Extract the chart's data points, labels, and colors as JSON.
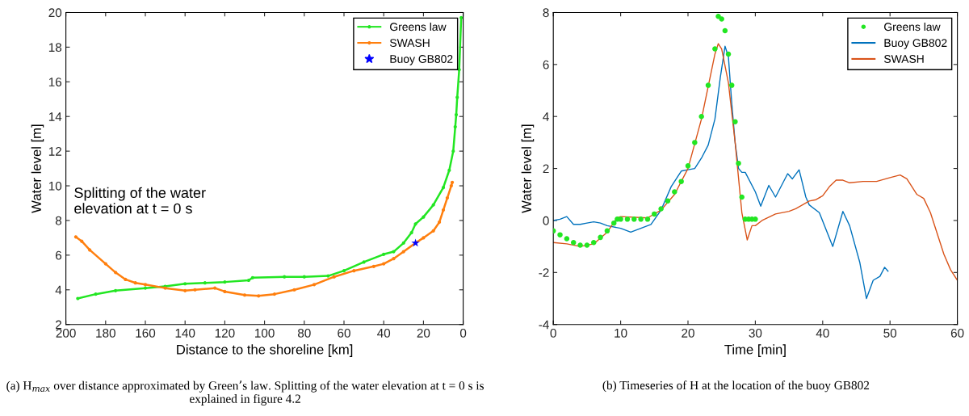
{
  "chart_data": [
    {
      "type": "line",
      "xlabel": "Distance to the shoreline [km]",
      "ylabel": "Water level [m]",
      "xlim": [
        200,
        0
      ],
      "ylim": [
        2,
        20
      ],
      "xticks": [
        200,
        180,
        160,
        140,
        120,
        100,
        80,
        60,
        40,
        20,
        0
      ],
      "yticks": [
        2,
        4,
        6,
        8,
        10,
        12,
        14,
        16,
        18,
        20
      ],
      "legend": "top right",
      "annotations": [
        "Splitting of the water\nelevation at t = 0 s",
        "(a) H$_{max}$ over distance approximated by Green’s law. Splitting of the water elevation at t = 0 s is explained in figure 4.2"
      ],
      "series": [
        {
          "name": "Greens law",
          "color": "#22e622",
          "marker": "circle",
          "x": [
            194,
            185,
            175,
            160,
            150,
            140,
            130,
            120,
            108,
            106,
            90,
            80,
            68,
            60,
            50,
            40,
            35,
            30,
            26,
            24,
            20,
            15,
            10,
            7,
            5,
            4,
            3.5,
            3,
            2,
            1
          ],
          "values": [
            3.5,
            3.75,
            3.95,
            4.1,
            4.2,
            4.35,
            4.4,
            4.45,
            4.55,
            4.7,
            4.75,
            4.75,
            4.8,
            5.1,
            5.6,
            6.05,
            6.2,
            6.7,
            7.3,
            7.8,
            8.2,
            8.9,
            9.9,
            10.9,
            12,
            13.4,
            14.1,
            15.1,
            16.7,
            19.7
          ]
        },
        {
          "name": "SWASH",
          "color": "#ff7f0e",
          "marker": "circle",
          "x": [
            195,
            192,
            188,
            180,
            175,
            170,
            165,
            160,
            150,
            140,
            135,
            125,
            120,
            110,
            103,
            95,
            85,
            75,
            65,
            55,
            45,
            40,
            35,
            30,
            24,
            20,
            15,
            12,
            10,
            8,
            6,
            5.5
          ],
          "values": [
            7.05,
            6.8,
            6.3,
            5.5,
            5.0,
            4.6,
            4.4,
            4.3,
            4.1,
            3.95,
            4.0,
            4.1,
            3.9,
            3.7,
            3.65,
            3.75,
            4.0,
            4.3,
            4.75,
            5.1,
            5.35,
            5.5,
            5.8,
            6.2,
            6.7,
            7.0,
            7.4,
            7.9,
            8.6,
            9.3,
            10.0,
            10.2
          ]
        },
        {
          "name": "Buoy GB802",
          "type": "scatter",
          "color": "#0000ff",
          "marker": "star",
          "x": [
            24
          ],
          "values": [
            6.7
          ]
        }
      ]
    },
    {
      "type": "line",
      "xlabel": "Time [min]",
      "ylabel": "Water level [m]",
      "xlim": [
        0,
        60
      ],
      "ylim": [
        -4,
        8
      ],
      "xticks": [
        0,
        10,
        20,
        30,
        40,
        50,
        60
      ],
      "yticks": [
        -4,
        -2,
        0,
        2,
        4,
        6,
        8
      ],
      "legend": "top right",
      "annotations": [
        "(b) Timeseries of H at the location of the buoy GB802"
      ],
      "series": [
        {
          "name": "Greens law",
          "type": "scatter",
          "color": "#22e622",
          "marker": "circle",
          "x": [
            0,
            1,
            2,
            3,
            4,
            5,
            6,
            7,
            8,
            9,
            9.5,
            10,
            11,
            12,
            13,
            14,
            15,
            16,
            17,
            18,
            19,
            20,
            21,
            22,
            23,
            24,
            24.5,
            25,
            25.5,
            26,
            26.5,
            27,
            27.5,
            28,
            28.5,
            29,
            29.5,
            30
          ],
          "values": [
            -0.4,
            -0.55,
            -0.7,
            -0.85,
            -0.95,
            -0.95,
            -0.85,
            -0.65,
            -0.4,
            -0.1,
            0.05,
            0.05,
            0.05,
            0.05,
            0.05,
            0.05,
            0.25,
            0.45,
            0.75,
            1.1,
            1.5,
            2.1,
            3.0,
            4.0,
            5.2,
            6.6,
            7.85,
            7.75,
            7.3,
            6.4,
            5.2,
            3.8,
            2.2,
            0.9,
            0.05,
            0.05,
            0.05,
            0.05
          ]
        },
        {
          "name": "Buoy GB802",
          "color": "#0072bd",
          "x": [
            0,
            1,
            2,
            3,
            4,
            5,
            6,
            7,
            8,
            10,
            11.5,
            13,
            14.5,
            16,
            17.5,
            19,
            20,
            21,
            22,
            23,
            24,
            24.8,
            25.5,
            26,
            26.5,
            27,
            27.5,
            28,
            28.5,
            30,
            30.8,
            32,
            33,
            34.8,
            35.5,
            36.5,
            37.5,
            38,
            39.5,
            41.5,
            43,
            44,
            45.5,
            46.5,
            47.5,
            48.5,
            49.2,
            49.7
          ],
          "values": [
            0,
            0.05,
            0.15,
            -0.15,
            -0.15,
            -0.1,
            -0.05,
            -0.1,
            -0.2,
            -0.3,
            -0.45,
            -0.3,
            -0.15,
            0.4,
            1.3,
            1.9,
            1.95,
            2.0,
            2.4,
            2.9,
            3.9,
            5.5,
            6.7,
            6.3,
            4.5,
            3.0,
            2.0,
            1.85,
            1.85,
            1.1,
            0.55,
            1.35,
            0.9,
            1.8,
            1.6,
            1.95,
            0.9,
            0.6,
            0.3,
            -1.0,
            0.35,
            -0.2,
            -1.6,
            -3.0,
            -2.3,
            -2.15,
            -1.8,
            -1.95
          ]
        },
        {
          "name": "SWASH",
          "color": "#d95319",
          "x": [
            0,
            2,
            4,
            6,
            8,
            9.5,
            10,
            14,
            16,
            18,
            20,
            22,
            24,
            24.5,
            25,
            26,
            27,
            28,
            28.8,
            29.5,
            30,
            31,
            33,
            35,
            36,
            38,
            39,
            40,
            41,
            42,
            43,
            44,
            46,
            48,
            50,
            51.5,
            52.5,
            54,
            55,
            56,
            57,
            58,
            59,
            60
          ],
          "values": [
            -0.85,
            -0.9,
            -1.0,
            -0.9,
            -0.45,
            0.1,
            0.15,
            0.1,
            0.4,
            1.0,
            2.0,
            3.9,
            6.4,
            6.8,
            6.6,
            5.3,
            3.0,
            0.3,
            -0.75,
            -0.2,
            -0.2,
            0.0,
            0.25,
            0.35,
            0.45,
            0.75,
            0.8,
            0.95,
            1.3,
            1.55,
            1.55,
            1.45,
            1.5,
            1.5,
            1.65,
            1.75,
            1.6,
            1.0,
            0.85,
            0.3,
            -0.5,
            -1.3,
            -1.9,
            -2.3
          ]
        }
      ]
    }
  ]
}
